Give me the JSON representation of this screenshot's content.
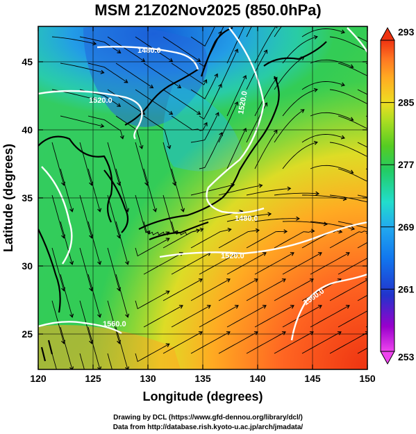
{
  "title": "MSM 21Z02Nov2025 (850.0hPa)",
  "map": {
    "xlabel": "Longitude (degrees)",
    "ylabel": "Latitude  (degrees)",
    "xlim": [
      120,
      150
    ],
    "ylim": [
      22.4,
      47.6
    ],
    "x_ticks": [
      "120",
      "125",
      "130",
      "135",
      "140",
      "145",
      "150"
    ],
    "y_ticks": [
      "25",
      "30",
      "35",
      "40",
      "45"
    ],
    "grid": true,
    "contour_labels": [
      "1480.0",
      "1520.0",
      "1480.0",
      "1520.0",
      "1560.0",
      "1520.0",
      "1560.0"
    ]
  },
  "colorbar": {
    "ticks": [
      "293",
      "285",
      "277",
      "269",
      "261",
      "253"
    ],
    "min": 253,
    "max": 293,
    "colors": [
      "#ee44ee",
      "#9900cc",
      "#2233cc",
      "#1177ee",
      "#22aaee",
      "#22ddcc",
      "#22cc66",
      "#55cc22",
      "#aadd22",
      "#eedd22",
      "#ffaa22",
      "#ff7722",
      "#ee3311"
    ]
  },
  "credits": {
    "line1": "Drawing by DCL (https://www.gfd-dennou.org/library/dcl/)",
    "line2": "Data from http://database.rish.kyoto-u.ac.jp/arch/jmadata/"
  }
}
